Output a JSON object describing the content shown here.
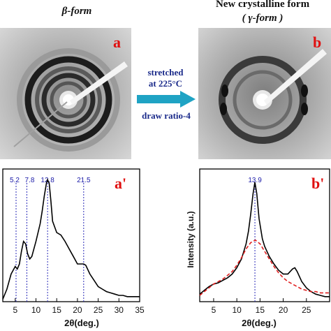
{
  "titles": {
    "left": "β-form",
    "right_line1": "New crystalline form",
    "right_line2": "( γ-form )"
  },
  "panels": {
    "a": "a",
    "b": "b",
    "a_prime": "a'",
    "b_prime": "b'"
  },
  "arrow": {
    "line1": "stretched",
    "line2": "at 225°C",
    "line3": "draw ratio-4",
    "color": "#1fa3c4"
  },
  "chart_data": [
    {
      "type": "line",
      "panel": "a'",
      "xlabel": "2θ(deg.)",
      "ylabel": "",
      "xlim": [
        2,
        35
      ],
      "xticks": [
        "5",
        "10",
        "15",
        "20",
        "25",
        "30",
        "35"
      ],
      "peak_labels": [
        "5.2",
        "7.8",
        "12.8",
        "21.5"
      ],
      "peak_positions": [
        5.2,
        7.8,
        12.8,
        21.5
      ],
      "series": [
        {
          "color": "#000000",
          "x": [
            2,
            3,
            4,
            5,
            5.5,
            6,
            6.5,
            7,
            7.5,
            8,
            8.5,
            9,
            10,
            11,
            11.5,
            12,
            12.5,
            12.8,
            13.2,
            13.6,
            14,
            15,
            16,
            17,
            18,
            19,
            20,
            21,
            21.5,
            22,
            23,
            24,
            25,
            26,
            27,
            28,
            29,
            30,
            31,
            32,
            33,
            34,
            35
          ],
          "y": [
            0.02,
            0.1,
            0.22,
            0.28,
            0.26,
            0.3,
            0.4,
            0.48,
            0.46,
            0.38,
            0.34,
            0.36,
            0.48,
            0.62,
            0.72,
            0.84,
            0.94,
            0.97,
            0.94,
            0.8,
            0.64,
            0.55,
            0.53,
            0.48,
            0.42,
            0.36,
            0.3,
            0.3,
            0.3,
            0.29,
            0.22,
            0.17,
            0.12,
            0.1,
            0.08,
            0.07,
            0.06,
            0.05,
            0.05,
            0.04,
            0.04,
            0.04,
            0.04
          ]
        }
      ]
    },
    {
      "type": "line",
      "panel": "b'",
      "xlabel": "2θ(deg.)",
      "ylabel": "Intensity (a.u.)",
      "xlim": [
        2,
        30
      ],
      "xticks": [
        "5",
        "10",
        "15",
        "20",
        "25"
      ],
      "peak_labels": [
        "13.9"
      ],
      "peak_positions": [
        13.9
      ],
      "series": [
        {
          "color": "#000000",
          "x": [
            2,
            3,
            4,
            5,
            6,
            7,
            8,
            9,
            10,
            11,
            12,
            12.5,
            13,
            13.5,
            13.9,
            14.3,
            14.8,
            15.5,
            16,
            17,
            18,
            19,
            20,
            21,
            22,
            22.5,
            23,
            24,
            25,
            26,
            27,
            28,
            29,
            30
          ],
          "y": [
            0.06,
            0.09,
            0.12,
            0.14,
            0.15,
            0.17,
            0.19,
            0.22,
            0.27,
            0.34,
            0.46,
            0.56,
            0.7,
            0.86,
            0.95,
            0.86,
            0.66,
            0.5,
            0.44,
            0.36,
            0.3,
            0.25,
            0.22,
            0.22,
            0.26,
            0.27,
            0.24,
            0.16,
            0.11,
            0.08,
            0.06,
            0.05,
            0.04,
            0.04
          ]
        },
        {
          "color": "#e02020",
          "x": [
            2,
            3,
            4,
            5,
            6,
            7,
            8,
            9,
            10,
            11,
            12,
            13,
            14,
            15,
            16,
            17,
            18,
            19,
            20,
            21,
            22,
            23,
            24,
            25,
            26,
            27,
            28,
            29,
            30
          ],
          "y": [
            0.05,
            0.08,
            0.11,
            0.14,
            0.16,
            0.18,
            0.21,
            0.24,
            0.29,
            0.35,
            0.42,
            0.47,
            0.49,
            0.46,
            0.4,
            0.34,
            0.28,
            0.23,
            0.19,
            0.16,
            0.14,
            0.12,
            0.1,
            0.09,
            0.08,
            0.08,
            0.07,
            0.07,
            0.07
          ]
        }
      ]
    }
  ]
}
